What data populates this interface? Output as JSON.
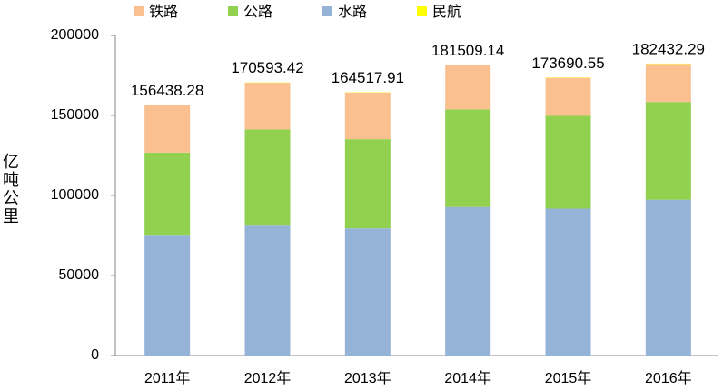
{
  "chart_data": {
    "type": "stacked_bar",
    "y_label": "亿吨公里",
    "categories": [
      "2011年",
      "2012年",
      "2013年",
      "2014年",
      "2015年",
      "2016年"
    ],
    "series": [
      {
        "name": "铁路",
        "color": "#fac090",
        "values": [
          29465.79,
          29187.09,
          29173.89,
          27530.19,
          23754.31,
          23792.26
        ]
      },
      {
        "name": "公路",
        "color": "#92d050",
        "values": [
          51374.74,
          59534.86,
          55738.08,
          61016.62,
          57955.72,
          61080.1
        ]
      },
      {
        "name": "水路",
        "color": "#95b3d7",
        "values": [
          75423.84,
          81707.58,
          79435.65,
          92774.56,
          91772.45,
          97338.8
        ]
      },
      {
        "name": "民航",
        "color": "#ffff00",
        "values": [
          173.91,
          163.89,
          170.29,
          187.77,
          208.07,
          221.13
        ]
      }
    ],
    "totals": [
      156438.28,
      170593.42,
      164517.91,
      181509.14,
      173690.55,
      182432.29
    ],
    "ylim": [
      0,
      200000
    ],
    "yticks": [
      0,
      50000,
      100000,
      150000,
      200000
    ],
    "grid": false
  }
}
